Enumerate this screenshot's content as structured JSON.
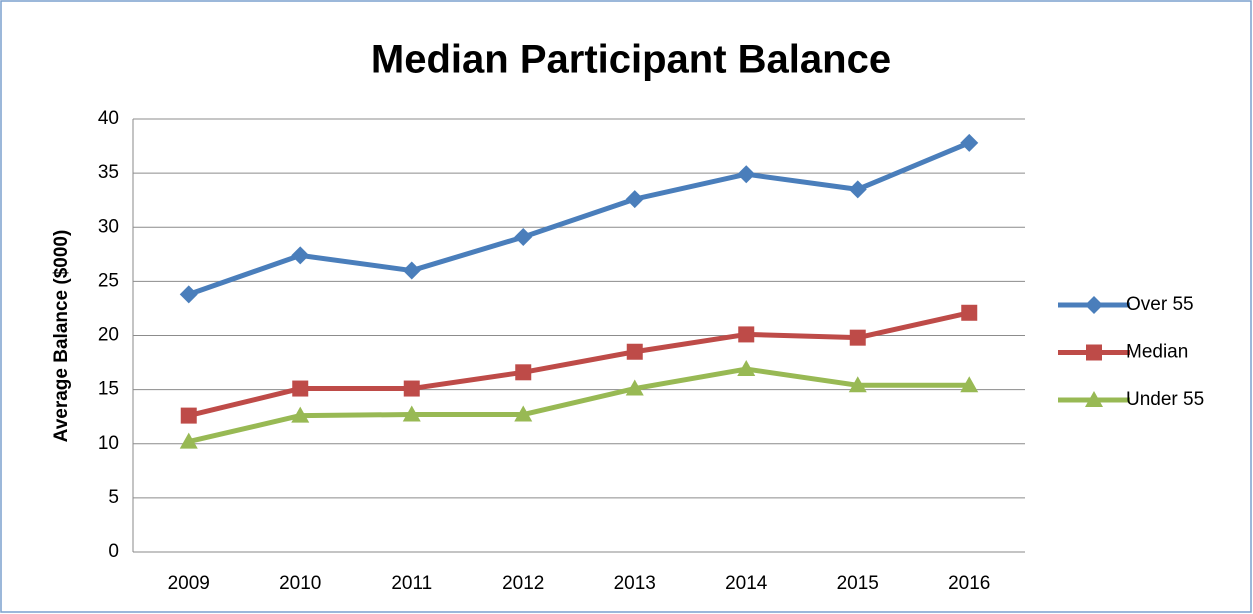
{
  "chart_data": {
    "type": "line",
    "title": "Median Participant Balance",
    "y_label": "Average Balance ($000)",
    "categories": [
      "2009",
      "2010",
      "2011",
      "2012",
      "2013",
      "2014",
      "2015",
      "2016"
    ],
    "series": [
      {
        "name": "Over 55",
        "color": "#4a7ebb",
        "marker": "diamond",
        "values": [
          23.8,
          27.4,
          26.0,
          29.1,
          32.6,
          34.9,
          33.5,
          37.8
        ]
      },
      {
        "name": "Median",
        "color": "#be4b48",
        "marker": "square",
        "values": [
          12.6,
          15.1,
          15.1,
          16.6,
          18.5,
          20.1,
          19.8,
          22.1
        ]
      },
      {
        "name": "Under 55",
        "color": "#98b954",
        "marker": "triangle",
        "values": [
          10.2,
          12.6,
          12.7,
          12.7,
          15.1,
          16.9,
          15.4,
          15.4
        ]
      }
    ],
    "ylim": [
      0,
      40
    ],
    "yticks": [
      0,
      5,
      10,
      15,
      20,
      25,
      30,
      35,
      40
    ],
    "grid": true,
    "legend": "right"
  }
}
